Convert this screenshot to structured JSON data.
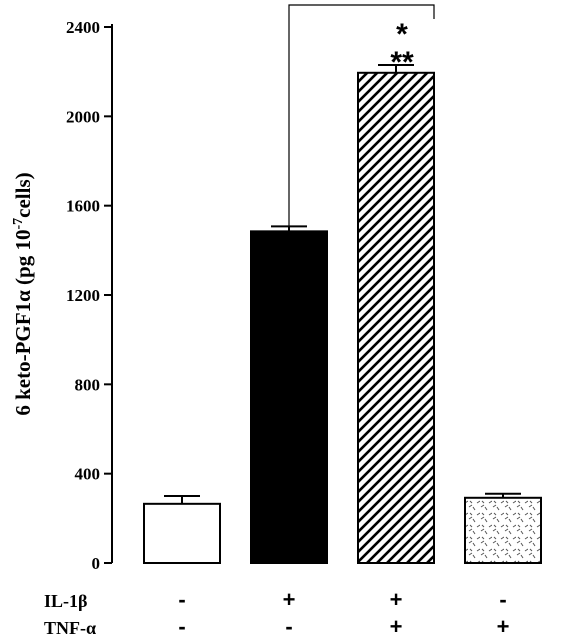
{
  "chart_data": {
    "type": "bar",
    "title": "",
    "xlabel": "",
    "ylabel": "6 keto-PGF1α (pg 10",
    "ylabel_exponent": "-7",
    "ylabel_suffix": "cells)",
    "ylim": [
      0,
      2400
    ],
    "yticks": [
      "0",
      "400",
      "800",
      "1200",
      "1600",
      "2000",
      "2400"
    ],
    "grid": false,
    "values": [
      265,
      1485,
      2195,
      292
    ],
    "errors": [
      35,
      22,
      35,
      18
    ],
    "fills": [
      "white",
      "solid-black",
      "diagonal-hatch",
      "dashed-stipple"
    ],
    "conditions": [
      {
        "label": "IL-1β",
        "signs": [
          "-",
          "+",
          "+",
          "-"
        ]
      },
      {
        "label": "TNF-α",
        "signs": [
          "-",
          "-",
          "+",
          "+"
        ]
      }
    ],
    "significance": {
      "bracket_from_bar": 2,
      "bracket_to_bar": 3,
      "marks": [
        "*",
        "**"
      ]
    }
  }
}
